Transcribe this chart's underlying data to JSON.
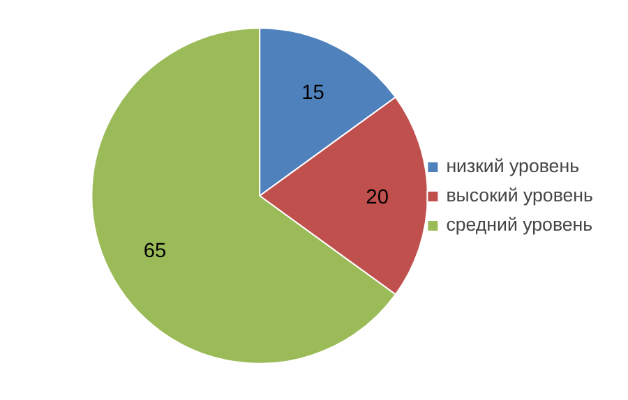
{
  "chart_data": {
    "type": "pie",
    "categories": [
      "низкий уровень",
      "высокий уровень",
      "средний уровень"
    ],
    "values": [
      15,
      20,
      65
    ],
    "colors": [
      "#4f81bd",
      "#c0504d",
      "#9bbb59"
    ],
    "data_labels": true,
    "legend": "right"
  }
}
